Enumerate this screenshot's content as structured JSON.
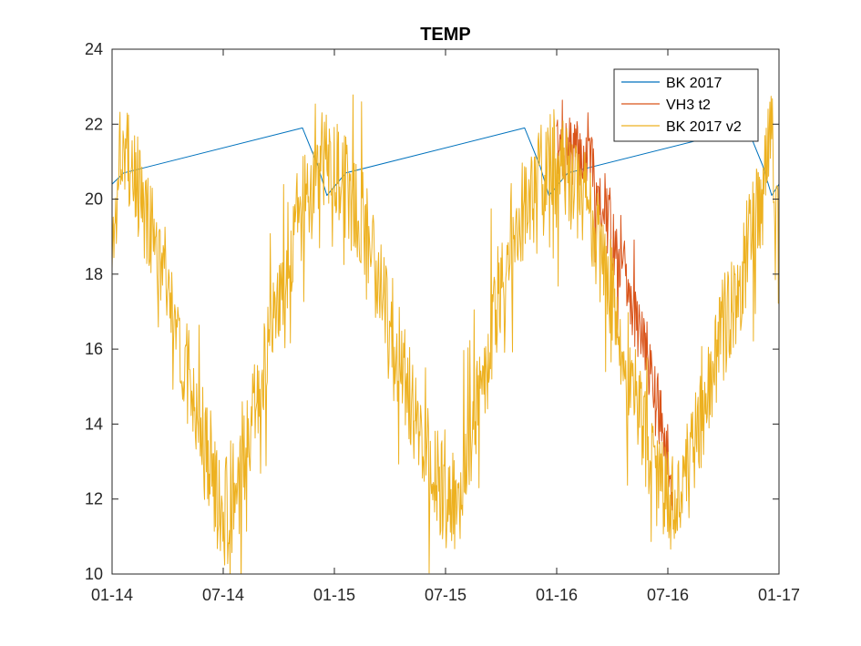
{
  "chart_data": {
    "type": "line",
    "title": "TEMP",
    "xlabel": "",
    "ylabel": "",
    "x_ticks": [
      "01-14",
      "07-14",
      "01-15",
      "07-15",
      "01-16",
      "07-16",
      "01-17"
    ],
    "x_range": [
      "2014-01-01",
      "2017-01-01"
    ],
    "y_ticks": [
      10,
      12,
      14,
      16,
      18,
      20,
      22,
      24
    ],
    "ylim": [
      10,
      24
    ],
    "grid": false,
    "legend_position": "top-right",
    "series": [
      {
        "name": "BK 2017",
        "color": "#0072BD",
        "style": "smooth",
        "points": [
          [
            "2014-01-01",
            20.4
          ],
          [
            "2014-01-20",
            20.7
          ],
          [
            "2014-11-10",
            21.9
          ],
          [
            "2014-12-05",
            20.9
          ],
          [
            "2014-12-20",
            20.1
          ],
          [
            "2015-01-20",
            20.7
          ],
          [
            "2015-11-10",
            21.9
          ],
          [
            "2015-12-05",
            20.9
          ],
          [
            "2015-12-20",
            20.1
          ],
          [
            "2016-01-20",
            20.7
          ],
          [
            "2016-11-10",
            21.9
          ],
          [
            "2016-12-05",
            20.9
          ],
          [
            "2016-12-20",
            20.1
          ],
          [
            "2017-01-01",
            20.4
          ]
        ]
      },
      {
        "name": "VH3 t2",
        "color": "#D95319",
        "style": "noisy",
        "noise": 0.9,
        "seed": 7,
        "points": [
          [
            "2016-01-01",
            21.2
          ],
          [
            "2016-02-01",
            21.3
          ],
          [
            "2016-03-01",
            20.8
          ],
          [
            "2016-04-01",
            19.0
          ],
          [
            "2016-05-01",
            17.3
          ],
          [
            "2016-06-01",
            15.8
          ],
          [
            "2016-07-01",
            13.2
          ],
          [
            "2016-07-10",
            12.3
          ]
        ]
      },
      {
        "name": "BK 2017 v2",
        "color": "#EDB120",
        "style": "noisy",
        "noise": 1.4,
        "seed": 3,
        "points": [
          [
            "2014-01-01",
            18.0
          ],
          [
            "2014-01-15",
            21.5
          ],
          [
            "2014-02-01",
            20.8
          ],
          [
            "2014-03-01",
            19.5
          ],
          [
            "2014-04-01",
            17.5
          ],
          [
            "2014-05-01",
            15.5
          ],
          [
            "2014-06-01",
            13.5
          ],
          [
            "2014-07-01",
            11.5
          ],
          [
            "2014-07-15",
            11.2
          ],
          [
            "2014-08-01",
            12.5
          ],
          [
            "2014-09-01",
            15.0
          ],
          [
            "2014-10-01",
            17.5
          ],
          [
            "2014-11-01",
            19.5
          ],
          [
            "2014-12-15",
            21.0
          ],
          [
            "2015-01-15",
            20.5
          ],
          [
            "2015-02-15",
            19.5
          ],
          [
            "2015-03-15",
            18.0
          ],
          [
            "2015-04-15",
            16.0
          ],
          [
            "2015-05-15",
            14.0
          ],
          [
            "2015-06-15",
            12.5
          ],
          [
            "2015-07-10",
            11.8
          ],
          [
            "2015-08-01",
            12.5
          ],
          [
            "2015-09-01",
            15.0
          ],
          [
            "2015-10-01",
            17.5
          ],
          [
            "2015-11-01",
            19.5
          ],
          [
            "2015-12-15",
            21.0
          ],
          [
            "2016-01-15",
            21.0
          ],
          [
            "2016-02-15",
            20.0
          ],
          [
            "2016-03-15",
            18.5
          ],
          [
            "2016-04-15",
            16.5
          ],
          [
            "2016-05-15",
            14.5
          ],
          [
            "2016-06-15",
            12.5
          ],
          [
            "2016-07-10",
            11.8
          ],
          [
            "2016-08-01",
            12.5
          ],
          [
            "2016-09-01",
            14.5
          ],
          [
            "2016-10-01",
            16.5
          ],
          [
            "2016-11-01",
            18.0
          ],
          [
            "2016-12-01",
            20.0
          ],
          [
            "2016-12-20",
            21.5
          ],
          [
            "2017-01-01",
            19.5
          ]
        ]
      }
    ]
  }
}
